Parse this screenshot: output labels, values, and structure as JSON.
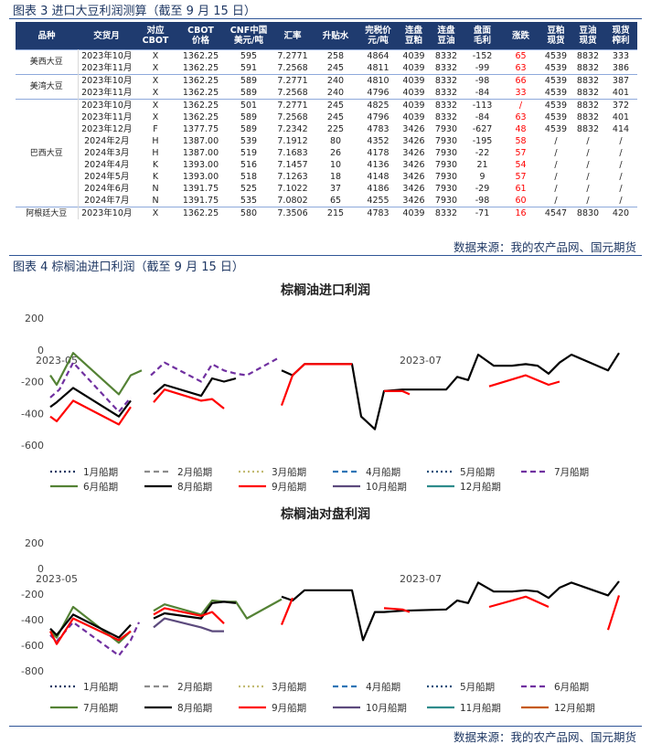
{
  "table_caption": "图表 3 进口大豆利润测算（截至 9 月 15 日）",
  "table": {
    "header": [
      "品种",
      "交货月",
      "对应\nCBOT",
      "CBOT\n价格",
      "CNF中国\n美元/吨",
      "汇率",
      "升贴水",
      "完税价\n元/吨",
      "连盘\n豆粕",
      "连盘\n豆油",
      "盘面\n毛利",
      "涨跌",
      "豆粕\n现货",
      "豆油\n现货",
      "现货\n榨利"
    ],
    "groups": [
      {
        "name": "美西大豆",
        "rows": [
          [
            "2023年10月",
            "X",
            "1362.25",
            "595",
            "7.2771",
            "258",
            "4864",
            "4039",
            "8332",
            "-152",
            "65",
            "4539",
            "8832",
            "333"
          ],
          [
            "2023年11月",
            "X",
            "1362.25",
            "591",
            "7.2568",
            "245",
            "4811",
            "4039",
            "8332",
            "-99",
            "63",
            "4539",
            "8832",
            "386"
          ]
        ]
      },
      {
        "name": "美湾大豆",
        "rows": [
          [
            "2023年10月",
            "X",
            "1362.25",
            "589",
            "7.2771",
            "240",
            "4810",
            "4039",
            "8332",
            "-98",
            "66",
            "4539",
            "8832",
            "387"
          ],
          [
            "2023年11月",
            "X",
            "1362.25",
            "589",
            "7.2568",
            "240",
            "4796",
            "4039",
            "8332",
            "-84",
            "33",
            "4539",
            "8832",
            "401"
          ]
        ]
      },
      {
        "name": "巴西大豆",
        "rows": [
          [
            "2023年10月",
            "X",
            "1362.25",
            "501",
            "7.2771",
            "245",
            "4825",
            "4039",
            "8332",
            "-113",
            "/",
            "4539",
            "8832",
            "372"
          ],
          [
            "2023年11月",
            "X",
            "1362.25",
            "589",
            "7.2568",
            "245",
            "4796",
            "4039",
            "8332",
            "-84",
            "63",
            "4539",
            "8832",
            "401"
          ],
          [
            "2023年12月",
            "F",
            "1377.75",
            "589",
            "7.2342",
            "225",
            "4783",
            "3426",
            "7930",
            "-627",
            "48",
            "4539",
            "8832",
            "414"
          ],
          [
            "2024年2月",
            "H",
            "1387.00",
            "539",
            "7.1912",
            "80",
            "4352",
            "3426",
            "7930",
            "-195",
            "58",
            "/",
            "/",
            "/"
          ],
          [
            "2024年3月",
            "H",
            "1387.00",
            "519",
            "7.1683",
            "26",
            "4178",
            "3426",
            "7930",
            "-22",
            "57",
            "/",
            "/",
            "/"
          ],
          [
            "2024年4月",
            "K",
            "1393.00",
            "516",
            "7.1457",
            "10",
            "4136",
            "3426",
            "7930",
            "21",
            "54",
            "/",
            "/",
            "/"
          ],
          [
            "2024年5月",
            "K",
            "1393.00",
            "518",
            "7.1263",
            "18",
            "4148",
            "3426",
            "7930",
            "9",
            "57",
            "/",
            "/",
            "/"
          ],
          [
            "2024年6月",
            "N",
            "1391.75",
            "525",
            "7.1022",
            "37",
            "4186",
            "3426",
            "7930",
            "-29",
            "61",
            "/",
            "/",
            "/"
          ],
          [
            "2024年7月",
            "N",
            "1391.75",
            "535",
            "7.0802",
            "65",
            "4255",
            "3426",
            "7930",
            "-98",
            "60",
            "/",
            "/",
            "/"
          ]
        ]
      },
      {
        "name": "阿根廷大豆",
        "rows": [
          [
            "2023年10月",
            "X",
            "1362.25",
            "580",
            "7.3506",
            "215",
            "4783",
            "4039",
            "8332",
            "-71",
            "16",
            "4547",
            "8830",
            "420"
          ]
        ]
      }
    ]
  },
  "table_source": "数据来源：我的农产品网、国元期货",
  "figure_caption": "图表 4 棕榈油进口利润（截至 9 月 15 日）",
  "chart_data": [
    {
      "type": "line",
      "title": "棕榈油进口利润",
      "xlim": [
        0,
        64
      ],
      "xticks": [
        {
          "value": 0.7,
          "label": "2023-05"
        },
        {
          "value": 40.5,
          "label": "2023-07"
        }
      ],
      "ylim": [
        -600,
        200
      ],
      "yticks": [
        200,
        0,
        -200,
        -400,
        -600
      ],
      "series": [
        {
          "name": "1月船期",
          "color": "#1f3864",
          "style": "dotted",
          "x": [],
          "values": []
        },
        {
          "name": "2月船期",
          "color": "#8c8c8c",
          "style": "dashed",
          "x": [],
          "values": []
        },
        {
          "name": "3月船期",
          "color": "#c2bb72",
          "style": "dotted",
          "x": [],
          "values": []
        },
        {
          "name": "4月船期",
          "color": "#2e75b6",
          "style": "dashed",
          "x": [],
          "values": []
        },
        {
          "name": "5月船期",
          "color": "#1f4e79",
          "style": "dotted",
          "x": [],
          "values": []
        },
        {
          "name": "7月船期",
          "color": "#7030a0",
          "style": "dashed",
          "x": [
            0,
            1,
            2.5,
            7.5,
            8.8,
            10,
            11,
            12.5,
            16.5,
            17.7,
            19,
            20.3,
            21.5,
            25
          ],
          "values": [
            -300,
            -250,
            -80,
            -390,
            -300,
            null,
            -160,
            -80,
            -200,
            -90,
            -130,
            -150,
            -160,
            -50
          ]
        },
        {
          "name": "6月船期",
          "color": "#548235",
          "style": "solid",
          "x": [
            0,
            0.7,
            2.5,
            7.5,
            8.8,
            10
          ],
          "values": [
            -160,
            -220,
            -20,
            -280,
            -160,
            -130
          ]
        },
        {
          "name": "8月船期",
          "color": "#000000",
          "style": "solid",
          "x": [
            0,
            0.7,
            2.5,
            7.5,
            8.8,
            10,
            11.3,
            12.5,
            16.5,
            17.7,
            19,
            20.3,
            22,
            25.3,
            26.5,
            27.8,
            33,
            34,
            35.5,
            36.5,
            38.5,
            43.3,
            44.5,
            45.7,
            46.8,
            48.5,
            50.5,
            52,
            53.3,
            54.5,
            55.7,
            57,
            61,
            62.2
          ],
          "values": [
            -360,
            -330,
            -240,
            -420,
            -320,
            null,
            -280,
            -220,
            -290,
            -180,
            -200,
            -180,
            null,
            -130,
            -160,
            -90,
            -90,
            -420,
            -500,
            -260,
            -250,
            -250,
            -170,
            -190,
            -30,
            -100,
            -100,
            -90,
            -100,
            -150,
            -80,
            -30,
            -130,
            -20
          ]
        },
        {
          "name": "9月船期",
          "color": "#ff0000",
          "style": "solid",
          "x": [
            0,
            0.7,
            2.5,
            7.5,
            8.8,
            10,
            11.3,
            12.5,
            16.5,
            17.7,
            19,
            22,
            25.3,
            26.5,
            27.8,
            33,
            34,
            36.5,
            38.5,
            39.3,
            42,
            48,
            52,
            54.5,
            55.7
          ],
          "values": [
            -420,
            -450,
            -320,
            -470,
            -360,
            null,
            -330,
            -250,
            -320,
            -310,
            -370,
            null,
            -350,
            -160,
            -90,
            -90,
            null,
            -260,
            -260,
            -280,
            null,
            -230,
            -160,
            -220,
            -200
          ]
        },
        {
          "name": "10月船期",
          "color": "#5c4a7d",
          "style": "solid",
          "x": [],
          "values": []
        },
        {
          "name": "12月船期",
          "color": "#2e8b8b",
          "style": "solid",
          "x": [],
          "values": []
        }
      ]
    },
    {
      "type": "line",
      "title": "棕榈油对盘利润",
      "xlim": [
        0,
        64
      ],
      "xticks": [
        {
          "value": 0.7,
          "label": "2023-05"
        },
        {
          "value": 40.5,
          "label": "2023-07"
        }
      ],
      "ylim": [
        -800,
        200
      ],
      "yticks": [
        200,
        0,
        -200,
        -400,
        -600,
        -800
      ],
      "series": [
        {
          "name": "1月船期",
          "color": "#1f3864",
          "style": "dotted",
          "x": [],
          "values": []
        },
        {
          "name": "2月船期",
          "color": "#8c8c8c",
          "style": "dashed",
          "x": [],
          "values": []
        },
        {
          "name": "3月船期",
          "color": "#c2bb72",
          "style": "dotted",
          "x": [],
          "values": []
        },
        {
          "name": "4月船期",
          "color": "#2e75b6",
          "style": "dashed",
          "x": [],
          "values": []
        },
        {
          "name": "5月船期",
          "color": "#1f4e79",
          "style": "dotted",
          "x": [],
          "values": []
        },
        {
          "name": "6月船期",
          "color": "#7030a0",
          "style": "dashed",
          "x": [
            0,
            0.7,
            2.5,
            7.5,
            8.8,
            9.7
          ],
          "values": [
            -520,
            -570,
            -420,
            -680,
            -560,
            -420
          ]
        },
        {
          "name": "7月船期",
          "color": "#548235",
          "style": "solid",
          "x": [
            0,
            0.7,
            2.5,
            7.5,
            8.8,
            10,
            11.3,
            12.5,
            16.5,
            17.7,
            19,
            20.3,
            21.5,
            25.3
          ],
          "values": [
            -490,
            -540,
            -300,
            -580,
            -490,
            null,
            -330,
            -280,
            -360,
            -250,
            -260,
            -260,
            -390,
            -240
          ]
        },
        {
          "name": "8月船期",
          "color": "#000000",
          "style": "solid",
          "x": [
            0,
            0.7,
            2.5,
            7.5,
            8.8,
            10,
            11.3,
            12.5,
            16.5,
            17.7,
            19,
            20.3,
            22,
            25.3,
            26.5,
            27.8,
            33,
            34.2,
            35.5,
            36.5,
            38.5,
            43.3,
            44.5,
            45.7,
            46.8,
            48.5,
            50.5,
            52,
            53.3,
            54.5,
            55.7,
            57,
            61,
            62.2
          ],
          "values": [
            -470,
            -520,
            -360,
            -540,
            -440,
            null,
            -390,
            -350,
            -390,
            -270,
            -260,
            -270,
            null,
            -220,
            -250,
            -170,
            -170,
            -560,
            -340,
            -340,
            -330,
            -320,
            -250,
            -270,
            -110,
            -180,
            -180,
            -170,
            -180,
            -230,
            -150,
            -110,
            -210,
            -100
          ]
        },
        {
          "name": "9月船期",
          "color": "#ff0000",
          "style": "solid",
          "x": [
            0,
            0.7,
            2.5,
            7.5,
            8.8,
            10,
            11.3,
            12.5,
            16.5,
            17.7,
            19,
            22,
            25.3,
            26.5,
            30,
            36.5,
            38.5,
            39.3,
            42,
            48,
            52,
            54.5,
            58,
            61,
            62.2
          ],
          "values": [
            -490,
            -590,
            -390,
            -560,
            -490,
            null,
            -360,
            -310,
            -370,
            -340,
            -430,
            null,
            -440,
            -230,
            null,
            -310,
            -320,
            -340,
            null,
            -300,
            -220,
            -300,
            null,
            -480,
            -210
          ]
        },
        {
          "name": "10月船期",
          "color": "#5c4a7d",
          "style": "solid",
          "x": [
            11.3,
            12.5,
            16.5,
            17.7,
            19
          ],
          "values": [
            -460,
            -390,
            -460,
            -490,
            -490
          ]
        },
        {
          "name": "11月船期",
          "color": "#2e8b8b",
          "style": "solid",
          "x": [],
          "values": []
        },
        {
          "name": "12月船期",
          "color": "#c55a11",
          "style": "solid",
          "x": [],
          "values": []
        }
      ]
    }
  ],
  "figure_source": "数据来源：我的农产品网、国元期货"
}
